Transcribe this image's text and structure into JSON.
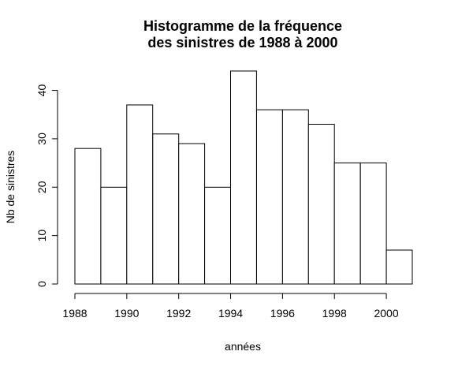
{
  "chart_data": {
    "type": "bar",
    "title_lines": [
      "Histogramme de la fréquence",
      "des sinistres de 1988 à 2000"
    ],
    "xlabel": "années",
    "ylabel": "Nb de sinistres",
    "bin_edges": [
      1988,
      1989,
      1990,
      1991,
      1992,
      1993,
      1994,
      1995,
      1996,
      1997,
      1998,
      1999,
      2000,
      2001
    ],
    "values": [
      28,
      20,
      37,
      31,
      29,
      20,
      44,
      36,
      36,
      33,
      25,
      25,
      7
    ],
    "xlim": [
      1988,
      2001
    ],
    "ylim": [
      0,
      44
    ],
    "x_ticks": [
      1988,
      1990,
      1992,
      1994,
      1996,
      1998,
      2000
    ],
    "y_ticks": [
      0,
      10,
      20,
      30,
      40
    ],
    "grid": false,
    "bar_fill": "#ffffff",
    "bar_stroke": "#000000"
  }
}
